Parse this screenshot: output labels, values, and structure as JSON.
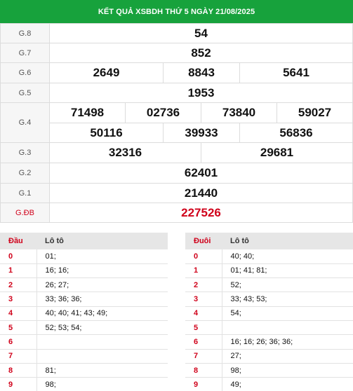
{
  "title": "KẾT QUẢ XSBDH THỨ 5 NGÀY 21/08/2025",
  "prizes": {
    "g8": {
      "label": "G.8",
      "values": [
        "54"
      ]
    },
    "g7": {
      "label": "G.7",
      "values": [
        "852"
      ]
    },
    "g6": {
      "label": "G.6",
      "values": [
        "2649",
        "8843",
        "5641"
      ]
    },
    "g5": {
      "label": "G.5",
      "values": [
        "1953"
      ]
    },
    "g4": {
      "label": "G.4",
      "values": [
        "71498",
        "02736",
        "73840",
        "59027",
        "50116",
        "39933",
        "56836"
      ]
    },
    "g3": {
      "label": "G.3",
      "values": [
        "32316",
        "29681"
      ]
    },
    "g2": {
      "label": "G.2",
      "values": [
        "62401"
      ]
    },
    "g1": {
      "label": "G.1",
      "values": [
        "21440"
      ]
    },
    "gdb": {
      "label": "G.ĐB",
      "values": [
        "227526"
      ]
    }
  },
  "loto_head": {
    "col1": "Đầu",
    "col2": "Lô tô",
    "rows": [
      {
        "k": "0",
        "v": "01;"
      },
      {
        "k": "1",
        "v": "16; 16;"
      },
      {
        "k": "2",
        "v": "26; 27;"
      },
      {
        "k": "3",
        "v": "33; 36; 36;"
      },
      {
        "k": "4",
        "v": "40; 40; 41; 43; 49;"
      },
      {
        "k": "5",
        "v": "52; 53; 54;"
      },
      {
        "k": "6",
        "v": ""
      },
      {
        "k": "7",
        "v": ""
      },
      {
        "k": "8",
        "v": "81;"
      },
      {
        "k": "9",
        "v": "98;"
      }
    ]
  },
  "loto_tail": {
    "col1": "Đuôi",
    "col2": "Lô tô",
    "rows": [
      {
        "k": "0",
        "v": "40; 40;"
      },
      {
        "k": "1",
        "v": "01; 41; 81;"
      },
      {
        "k": "2",
        "v": "52;"
      },
      {
        "k": "3",
        "v": "33; 43; 53;"
      },
      {
        "k": "4",
        "v": "54;"
      },
      {
        "k": "5",
        "v": ""
      },
      {
        "k": "6",
        "v": "16; 16; 26; 36; 36;"
      },
      {
        "k": "7",
        "v": "27;"
      },
      {
        "k": "8",
        "v": "98;"
      },
      {
        "k": "9",
        "v": "49;"
      }
    ]
  },
  "colors": {
    "header_bg": "#17a23c",
    "special": "#d0021b"
  }
}
